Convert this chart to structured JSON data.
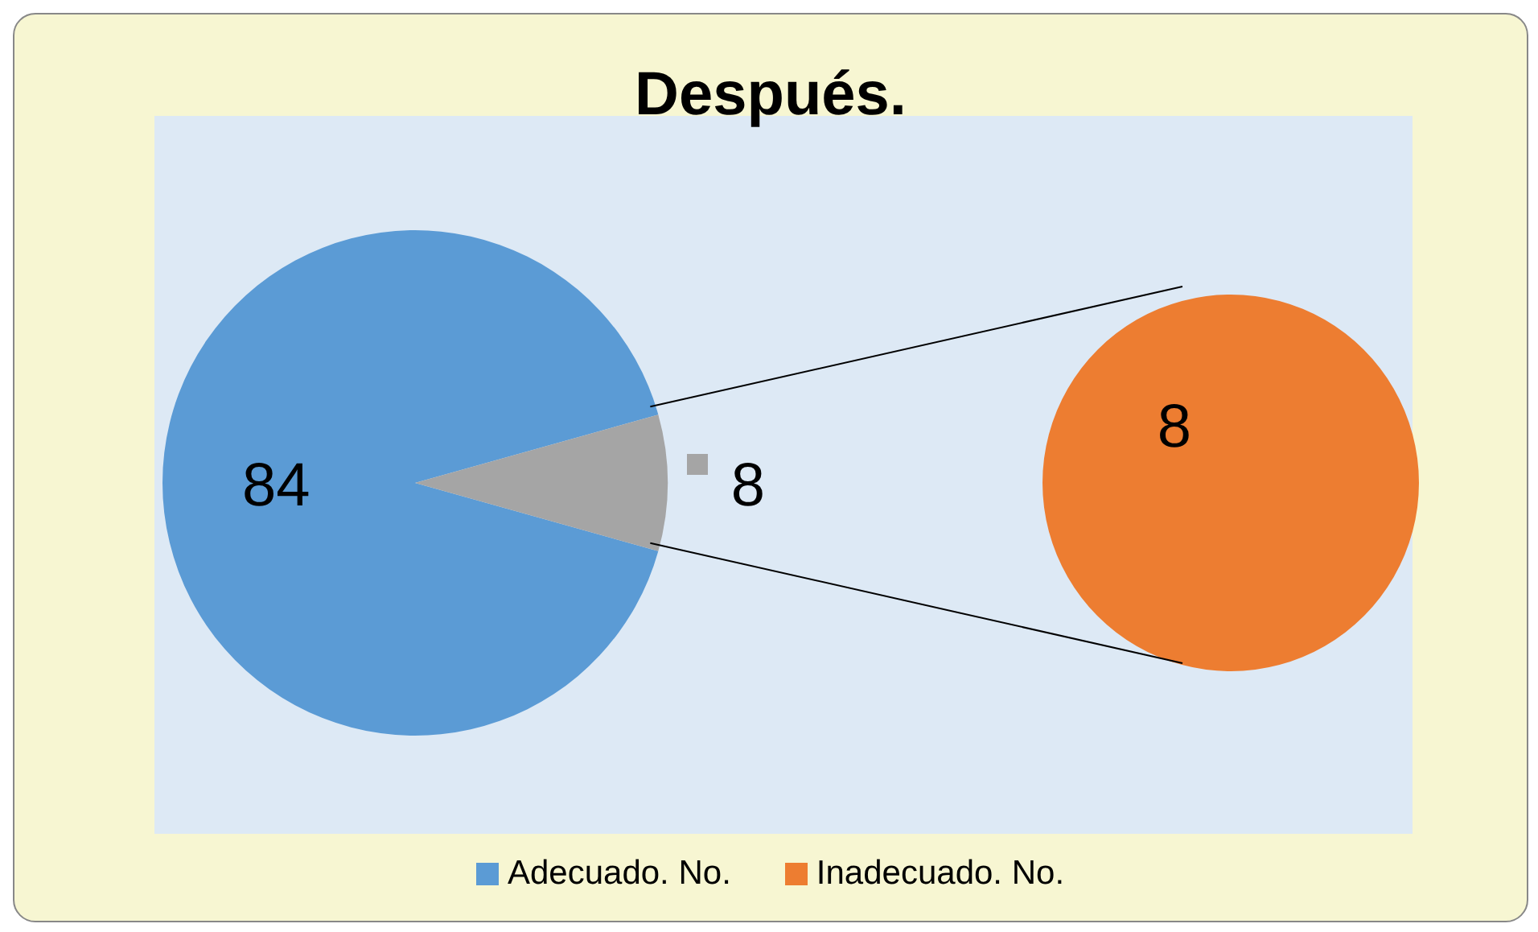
{
  "chart_data": {
    "type": "pie",
    "title": "Después.",
    "categories": [
      "Adecuado. No.",
      null,
      "Inadecuado. No."
    ],
    "colors": [
      "#5b9bd5",
      "#a5a5a5",
      "#ed7d31"
    ],
    "series": [
      {
        "values": [
          84,
          8,
          null
        ]
      },
      {
        "values": [
          null,
          null,
          8
        ]
      }
    ],
    "data_labels": true,
    "legend": "bottom"
  }
}
